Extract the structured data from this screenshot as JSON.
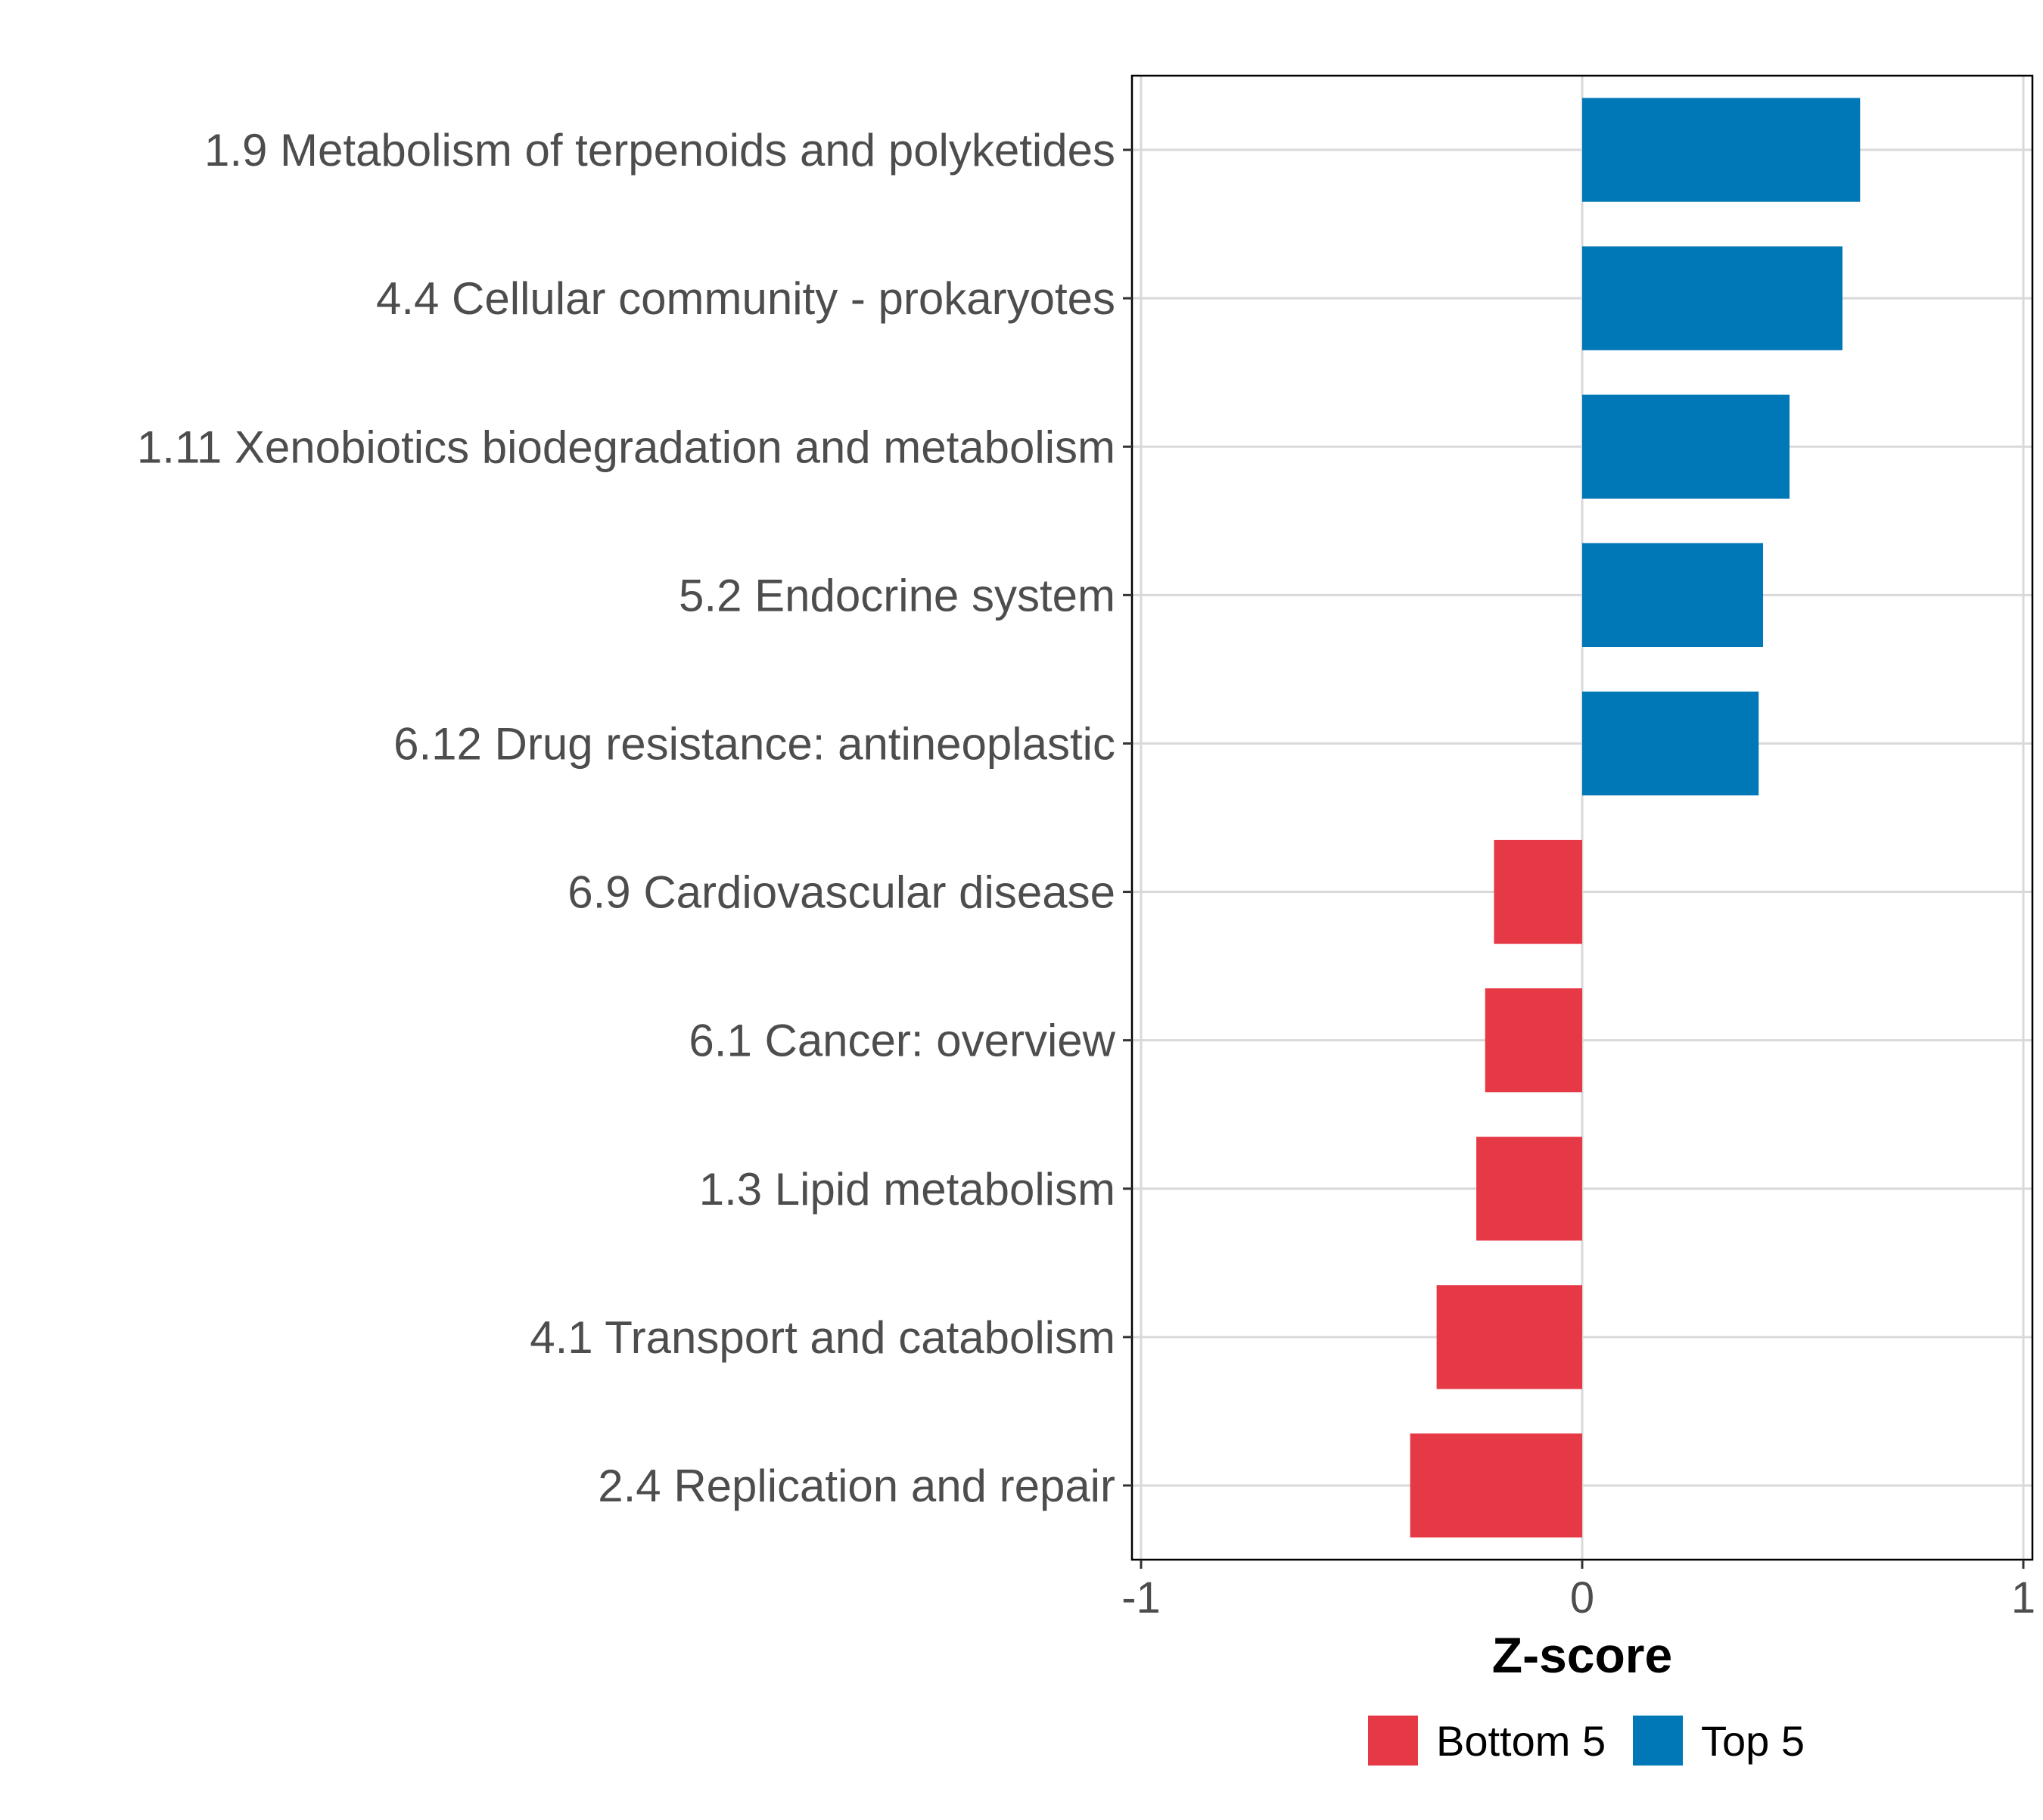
{
  "chart_data": {
    "type": "bar",
    "orientation": "horizontal",
    "title": "",
    "xlabel": "Z-score",
    "ylabel": "",
    "xlim": [
      -1,
      1
    ],
    "xticks": [
      {
        "value": -1,
        "label": "-1"
      },
      {
        "value": 0,
        "label": "0"
      },
      {
        "value": 1,
        "label": "1"
      }
    ],
    "grid": true,
    "legend_position": "bottom",
    "categories": [
      "1.9 Metabolism of terpenoids and polyketides",
      "4.4 Cellular community - prokaryotes",
      "1.11 Xenobiotics biodegradation and metabolism",
      "5.2 Endocrine system",
      "6.12 Drug resistance: antineoplastic",
      "6.9 Cardiovascular disease",
      "6.1 Cancer: overview",
      "1.3 Lipid metabolism",
      "4.1 Transport and catabolism",
      "2.4 Replication and repair"
    ],
    "values": [
      0.63,
      0.59,
      0.47,
      0.41,
      0.4,
      -0.2,
      -0.22,
      -0.24,
      -0.33,
      -0.39
    ],
    "groups": [
      "Top 5",
      "Top 5",
      "Top 5",
      "Top 5",
      "Top 5",
      "Bottom 5",
      "Bottom 5",
      "Bottom 5",
      "Bottom 5",
      "Bottom 5"
    ],
    "legend": [
      {
        "label": "Bottom 5",
        "color": "#e63946"
      },
      {
        "label": "Top 5",
        "color": "#0077b6"
      }
    ]
  }
}
